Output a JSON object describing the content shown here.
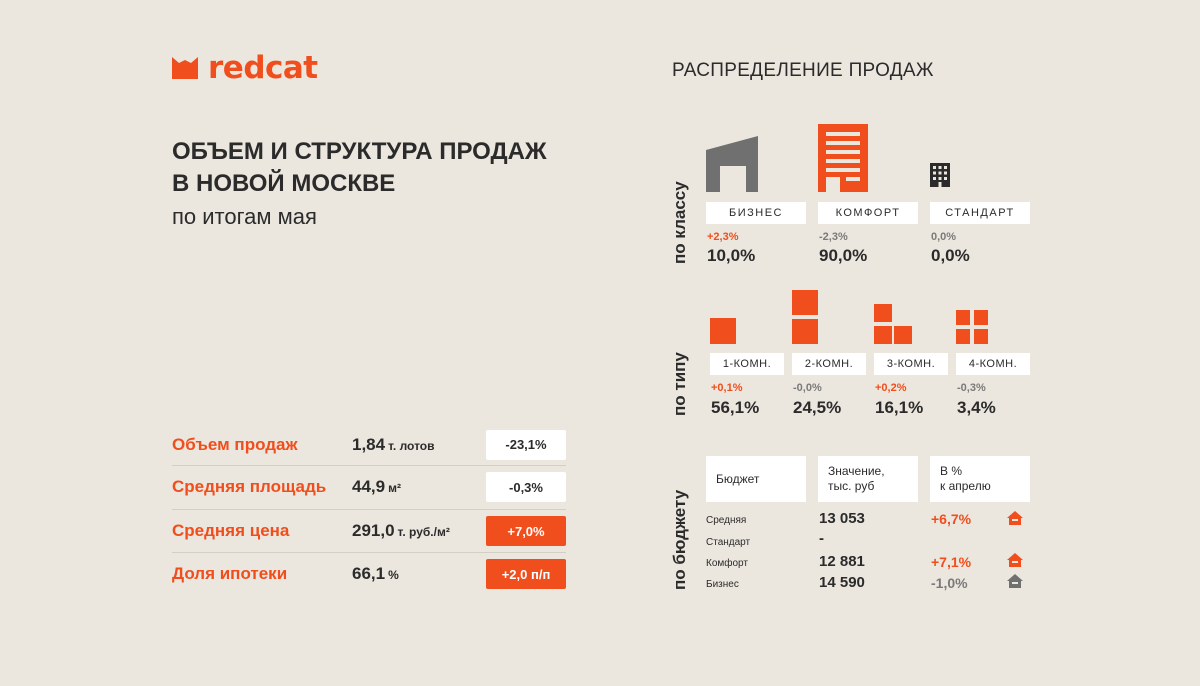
{
  "brand": {
    "name": "redcat",
    "color": "#f04e1c"
  },
  "header": {
    "title_line1": "ОБЪЕМ И СТРУКТУРА ПРОДАЖ",
    "title_line2": "В НОВОЙ МОСКВЕ",
    "subtitle": "по итогам мая"
  },
  "metrics": [
    {
      "label": "Объем продаж",
      "value": "1,84",
      "unit": "т. лотов",
      "change": "-23,1%",
      "direction": "down"
    },
    {
      "label": "Средняя площадь",
      "value": "44,9",
      "unit": "м²",
      "change": "-0,3%",
      "direction": "down"
    },
    {
      "label": "Средняя цена",
      "value": "291,0",
      "unit": "т. руб./м²",
      "change": "+7,0%",
      "direction": "up"
    },
    {
      "label": "Доля ипотеки",
      "value": "66,1",
      "unit": "%",
      "change": "+2,0 п/п",
      "direction": "up"
    }
  ],
  "distribution": {
    "title": "РАСПРЕДЕЛЕНИЕ ПРОДАЖ",
    "by_class_label": "по классу",
    "by_type_label": "по типу",
    "by_budget_label": "по бюджету"
  },
  "chart_data": [
    {
      "type": "table",
      "title": "по классу",
      "categories": [
        "БИЗНЕС",
        "КОМФОРТ",
        "СТАНДАРТ"
      ],
      "share": [
        "10,0%",
        "90,0%",
        "0,0%"
      ],
      "change": [
        "+2,3%",
        "-2,3%",
        "0,0%"
      ],
      "direction": [
        "up",
        "down",
        "flat"
      ],
      "values": [
        10.0,
        90.0,
        0.0
      ]
    },
    {
      "type": "table",
      "title": "по типу",
      "categories": [
        "1-КОМН.",
        "2-КОМН.",
        "3-КОМН.",
        "4-КОМН."
      ],
      "share": [
        "56,1%",
        "24,5%",
        "16,1%",
        "3,4%"
      ],
      "change": [
        "+0,1%",
        "-0,0%",
        "+0,2%",
        "-0,3%"
      ],
      "direction": [
        "up",
        "down",
        "up",
        "down"
      ],
      "values": [
        56.1,
        24.5,
        16.1,
        3.4
      ]
    },
    {
      "type": "table",
      "title": "по бюджету",
      "headers": [
        "Бюджет",
        "Значение, тыс. руб",
        "В % к апрелю"
      ],
      "header_col2_line1": "Значение,",
      "header_col2_line2": "тыс. руб",
      "header_col3_line1": "В %",
      "header_col3_line2": "к апрелю",
      "rows": [
        {
          "segment": "Средняя",
          "value": "13 053",
          "change": "+6,7%",
          "direction": "up"
        },
        {
          "segment": "Стандарт",
          "value": "-",
          "change": "",
          "direction": "none"
        },
        {
          "segment": "Комфорт",
          "value": "12 881",
          "change": "+7,1%",
          "direction": "up"
        },
        {
          "segment": "Бизнес",
          "value": "14 590",
          "change": "-1,0%",
          "direction": "down"
        }
      ]
    }
  ]
}
